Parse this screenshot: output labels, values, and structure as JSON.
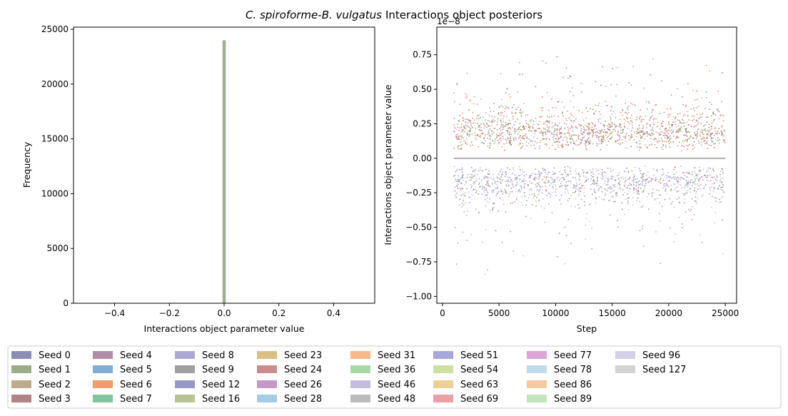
{
  "chart_data": {
    "suptitle": {
      "species_a": "C. spiroforme",
      "joiner": "-",
      "species_b": "B. vulgatus",
      "suffix": "Interactions object posteriors"
    },
    "panels": [
      {
        "type": "histogram",
        "xlabel": "Interactions object parameter value",
        "ylabel": "Frequency",
        "xlim": [
          -0.55,
          0.55
        ],
        "ylim": [
          0,
          25200
        ],
        "xticks": [
          -0.4,
          -0.2,
          0.0,
          0.2,
          0.4
        ],
        "xtick_labels": [
          "−0.4",
          "−0.2",
          "0.0",
          "0.2",
          "0.4"
        ],
        "yticks": [
          0,
          5000,
          10000,
          15000,
          20000,
          25000
        ],
        "ytick_labels": [
          "0",
          "5000",
          "10000",
          "15000",
          "20000",
          "25000"
        ],
        "bars": [
          {
            "x": 0.0,
            "width": 0.012,
            "height": 24000
          }
        ]
      },
      {
        "type": "scatter",
        "xlabel": "Step",
        "ylabel": "Interactions object parameter value",
        "offset_label": "1e−8",
        "xlim": [
          -500,
          26000
        ],
        "ylim": [
          -1.05,
          0.95
        ],
        "xticks": [
          0,
          5000,
          10000,
          15000,
          20000,
          25000
        ],
        "xtick_labels": [
          "0",
          "5000",
          "10000",
          "15000",
          "20000",
          "25000"
        ],
        "yticks": [
          -1.0,
          -0.75,
          -0.5,
          -0.25,
          0.0,
          0.25,
          0.5,
          0.75
        ],
        "ytick_labels": [
          "−1.00",
          "−0.75",
          "−0.50",
          "−0.25",
          "0.00",
          "0.25",
          "0.50",
          "0.75"
        ],
        "x_range": [
          1000,
          25000
        ],
        "zero_line": 0.0
      }
    ],
    "legend": {
      "placement": "bottom",
      "columns": 9,
      "entries": [
        {
          "label": "Seed 0",
          "color": "#8c8cb4"
        },
        {
          "label": "Seed 1",
          "color": "#9cac88"
        },
        {
          "label": "Seed 2",
          "color": "#bcac8c"
        },
        {
          "label": "Seed 3",
          "color": "#b08484"
        },
        {
          "label": "Seed 4",
          "color": "#b08ca8"
        },
        {
          "label": "Seed 5",
          "color": "#80acd8"
        },
        {
          "label": "Seed 6",
          "color": "#f09c6c"
        },
        {
          "label": "Seed 7",
          "color": "#84c49c"
        },
        {
          "label": "Seed 8",
          "color": "#aca8d4"
        },
        {
          "label": "Seed 9",
          "color": "#a0a0a0"
        },
        {
          "label": "Seed 12",
          "color": "#9898c8"
        },
        {
          "label": "Seed 16",
          "color": "#b8c494"
        },
        {
          "label": "Seed 23",
          "color": "#d8c084"
        },
        {
          "label": "Seed 24",
          "color": "#cc8c8c"
        },
        {
          "label": "Seed 26",
          "color": "#c498c4"
        },
        {
          "label": "Seed 28",
          "color": "#a4cce4"
        },
        {
          "label": "Seed 31",
          "color": "#f8b888"
        },
        {
          "label": "Seed 36",
          "color": "#a8d8a8"
        },
        {
          "label": "Seed 46",
          "color": "#c4bcdc"
        },
        {
          "label": "Seed 48",
          "color": "#bcbcbc"
        },
        {
          "label": "Seed 51",
          "color": "#a4a8dc"
        },
        {
          "label": "Seed 54",
          "color": "#d0e0a0"
        },
        {
          "label": "Seed 63",
          "color": "#ecd094"
        },
        {
          "label": "Seed 69",
          "color": "#e8a0a4"
        },
        {
          "label": "Seed 77",
          "color": "#e0a4d8"
        },
        {
          "label": "Seed 78",
          "color": "#c0dcec"
        },
        {
          "label": "Seed 86",
          "color": "#f8c8a0"
        },
        {
          "label": "Seed 89",
          "color": "#c4e4c0"
        },
        {
          "label": "Seed 96",
          "color": "#d4d0e8"
        },
        {
          "label": "Seed 127",
          "color": "#d4d4d4"
        }
      ]
    }
  }
}
